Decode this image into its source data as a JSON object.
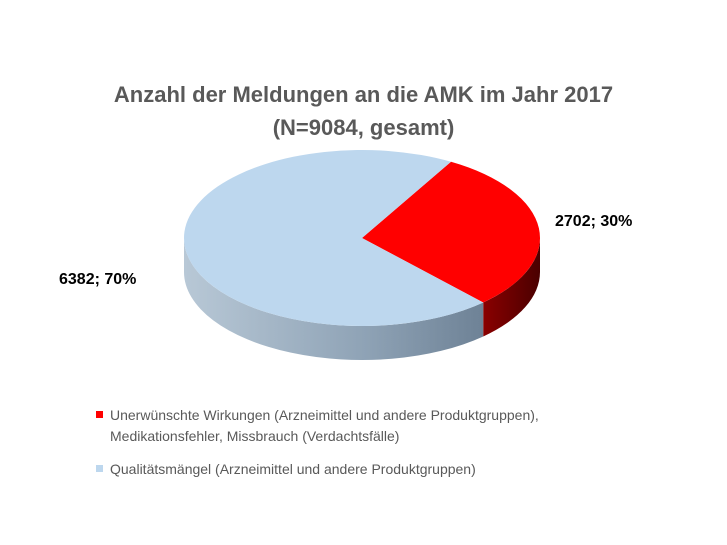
{
  "chart_data": {
    "type": "pie",
    "title_line1": "Anzahl der Meldungen an die AMK im Jahr 2017",
    "title_line2": "(N=9084, gesamt)",
    "slices": [
      {
        "name": "Unerwünschte Wirkungen (Arzneimittel und andere Produktgruppen), Medikationsfehler, Missbrauch (Verdachtsfälle)",
        "legend_lines": [
          "Unerwünschte Wirkungen (Arzneimittel und andere Produktgruppen),",
          "Medikationsfehler, Missbrauch (Verdachtsfälle)"
        ],
        "value": 2702,
        "percent": 30,
        "label": "2702; 30%",
        "color": "#ff0000",
        "side_color": "#6b0000"
      },
      {
        "name": "Qualitätsmängel (Arzneimittel und andere Produktgruppen)",
        "legend_lines": [
          "Qualitätsmängel (Arzneimittel und andere Produktgruppen)"
        ],
        "value": 6382,
        "percent": 70,
        "label": "6382; 70%",
        "color": "#bdd7ee",
        "side_color": "#7f93a6"
      }
    ],
    "legend_position": "bottom",
    "style": "3d-pie"
  }
}
